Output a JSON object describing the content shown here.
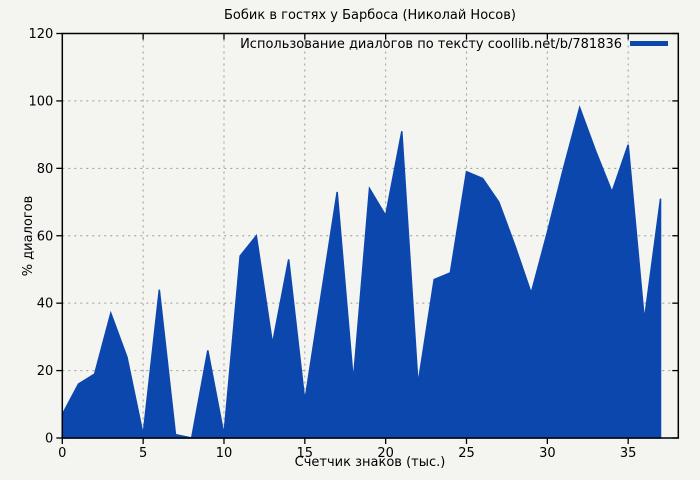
{
  "page": {
    "background": "#f4f4f1"
  },
  "chart_data": {
    "type": "area",
    "title": "Бобик в гостях у Барбоса (Николай Носов)",
    "xlabel": "Счетчик знаков (тыс.)",
    "ylabel": "% диалогов",
    "legend_label": "Использование диалогов по тексту coollib.net/b/781836",
    "legend_position": "top-right-inside",
    "grid": true,
    "grid_style": "dashed",
    "xlim": [
      0,
      38.1
    ],
    "ylim": [
      0,
      120
    ],
    "xticks": [
      0,
      5,
      10,
      15,
      20,
      25,
      30,
      35
    ],
    "yticks": [
      0,
      20,
      40,
      60,
      80,
      100,
      120
    ],
    "series": [
      {
        "name": "Использование диалогов по тексту coollib.net/b/781836",
        "color": "#0c47ae",
        "x": [
          0,
          1,
          2,
          3,
          4,
          5,
          6,
          7,
          8,
          9,
          10,
          11,
          12,
          13,
          14,
          15,
          16,
          17,
          18,
          19,
          20,
          21,
          22,
          23,
          24,
          25,
          26,
          27,
          28,
          29,
          30,
          31,
          32,
          33,
          34,
          35,
          36,
          37
        ],
        "y": [
          7,
          16,
          19,
          37,
          24,
          1,
          44,
          1,
          0,
          26,
          1,
          54,
          60,
          28,
          53,
          11,
          42,
          73,
          17,
          74,
          66,
          91,
          16,
          47,
          49,
          79,
          77,
          70,
          57,
          43,
          61,
          80,
          98,
          85,
          73,
          87,
          35,
          71
        ]
      }
    ],
    "colors": {
      "fill": "#0c47ae",
      "border": "#000000",
      "grid": "#9a9a9a",
      "background": "#f4f4f1",
      "text": "#000000"
    }
  }
}
